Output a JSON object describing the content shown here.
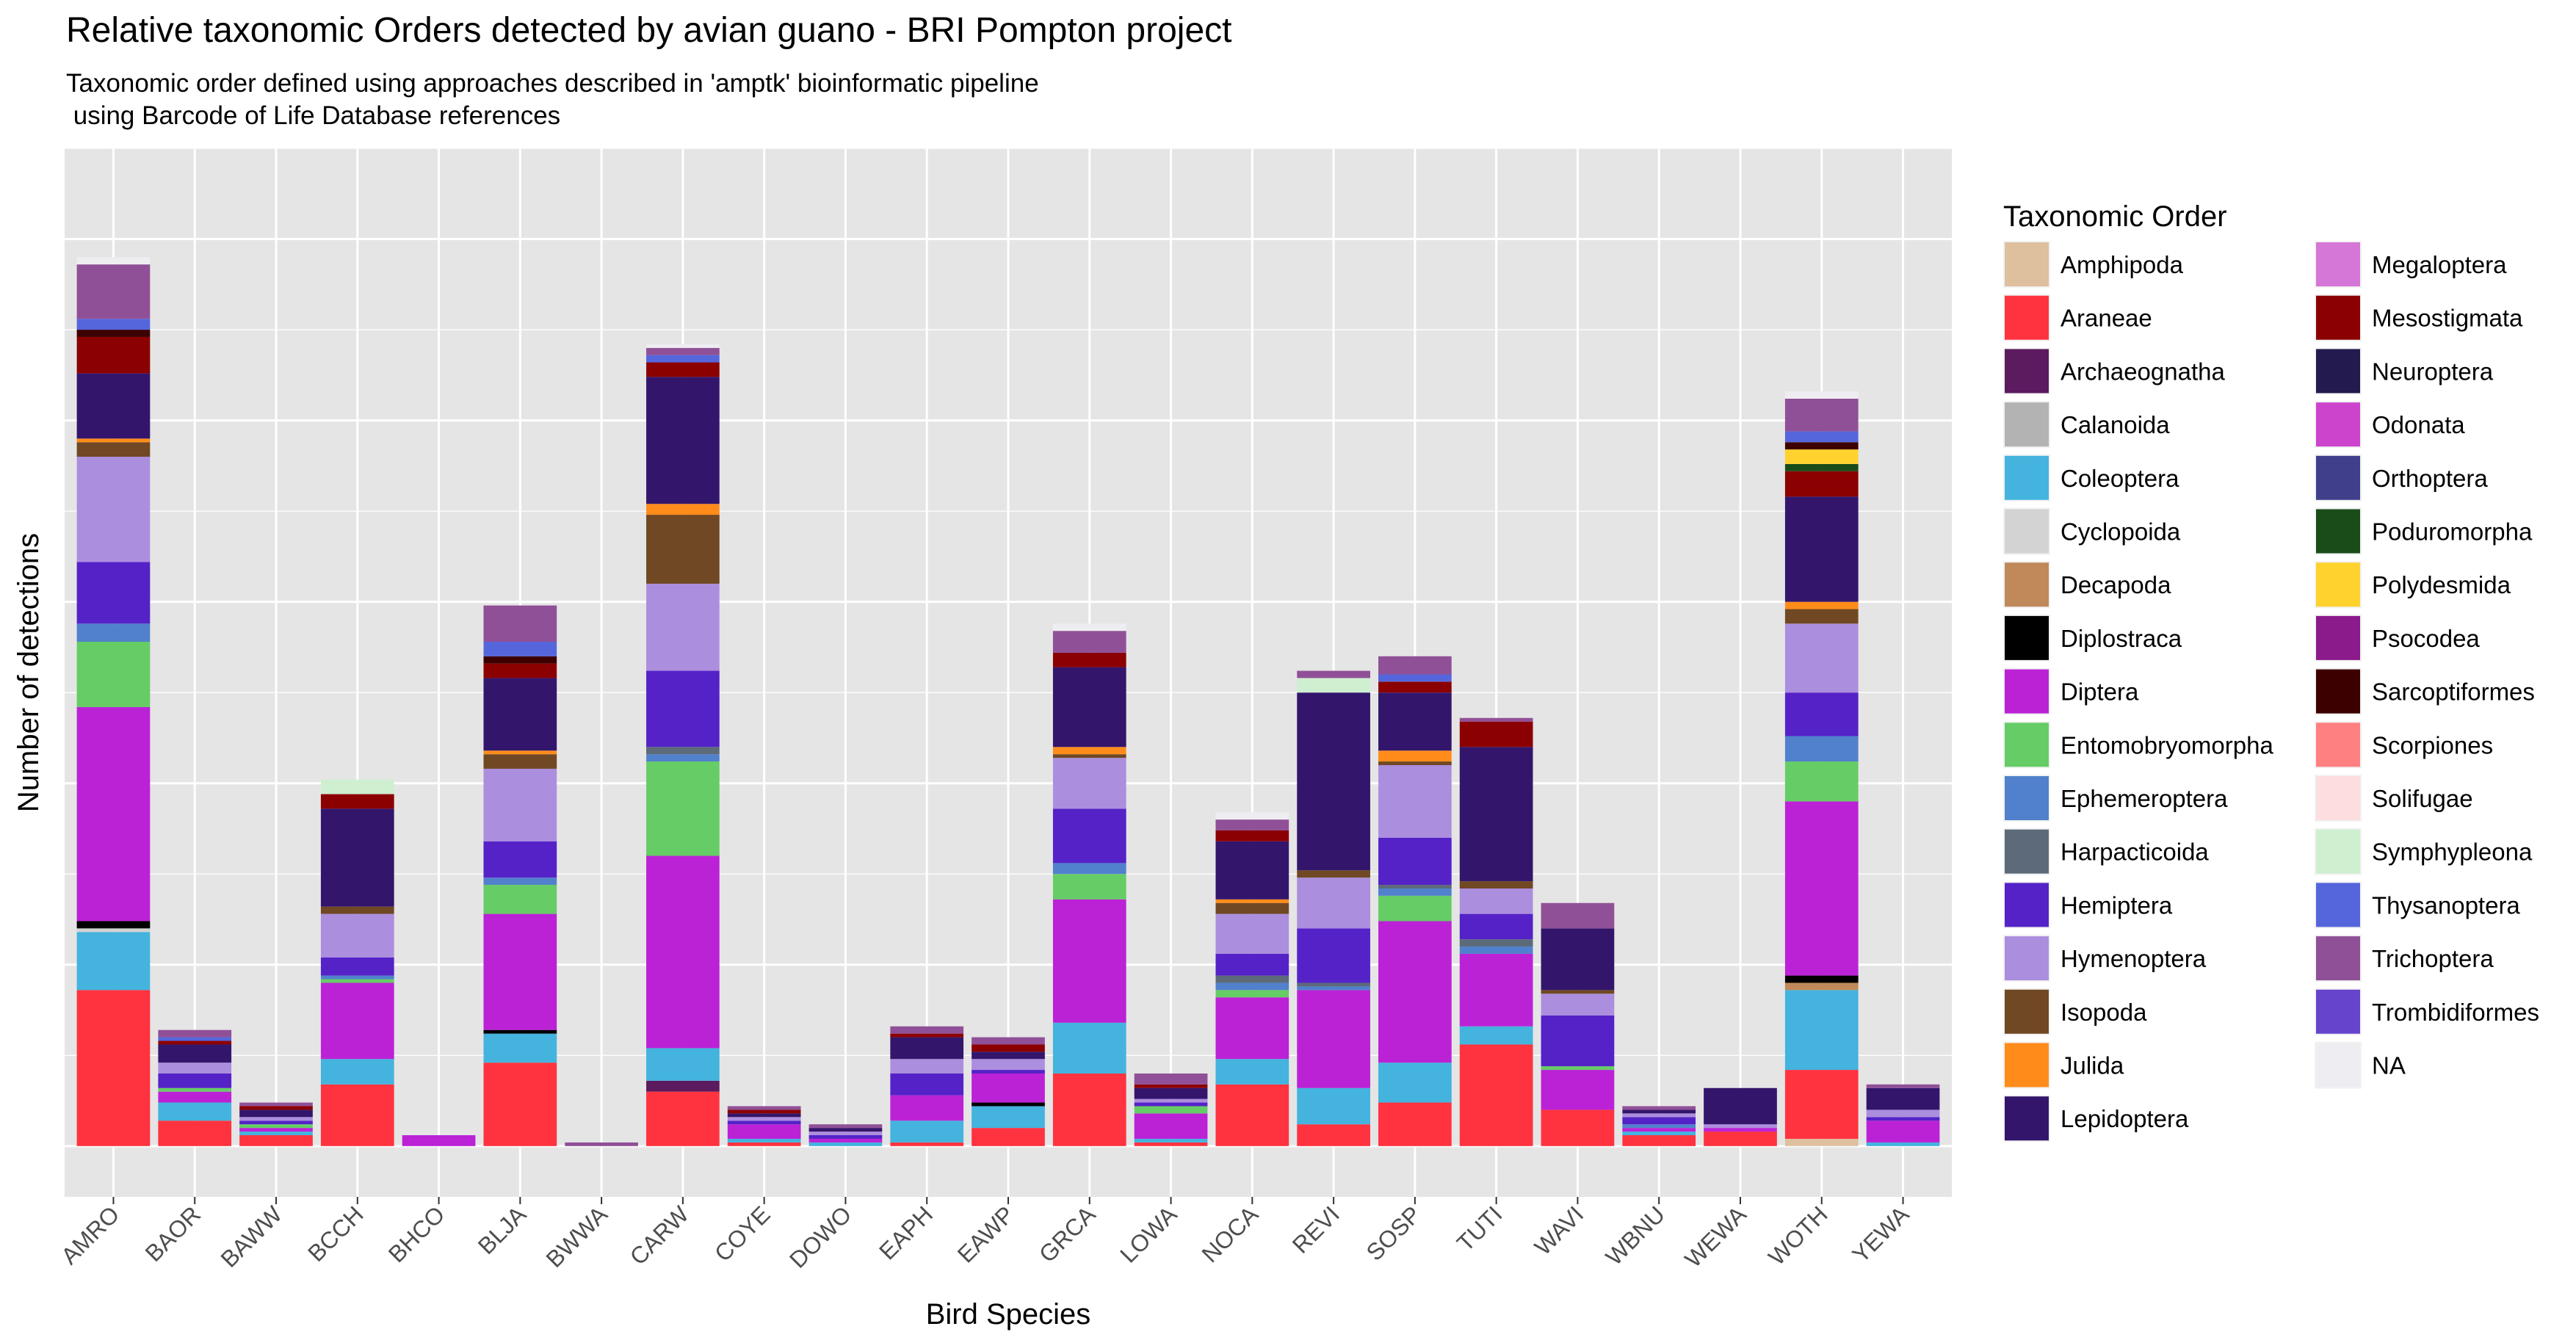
{
  "chart_data": {
    "type": "bar",
    "stacked": true,
    "title": "Relative taxonomic Orders detected by avian guano - BRI Pompton project",
    "subtitle": "Taxonomic order defined using approaches described in 'amptk' bioinformatic pipeline\n using Barcode of Life Database references",
    "xlabel": "Bird Species",
    "ylabel": "Number of detections",
    "legend_title": "Taxonomic Order",
    "legend_position": "right",
    "grid": true,
    "ylim": [
      -14,
      275
    ],
    "categories": [
      "AMRO",
      "BAOR",
      "BAWW",
      "BCCH",
      "BHCO",
      "BLJA",
      "BWWA",
      "CARW",
      "COYE",
      "DOWO",
      "EAPH",
      "EAWP",
      "GRCA",
      "LOWA",
      "NOCA",
      "REVI",
      "SOSP",
      "TUTI",
      "WAVI",
      "WBNU",
      "WEWA",
      "WOTH",
      "YEWA"
    ],
    "orders": [
      "Amphipoda",
      "Araneae",
      "Archaeognatha",
      "Calanoida",
      "Coleoptera",
      "Cyclopoida",
      "Decapoda",
      "Diplostraca",
      "Diptera",
      "Entomobryomorpha",
      "Ephemeroptera",
      "Harpacticoida",
      "Hemiptera",
      "Hymenoptera",
      "Isopoda",
      "Julida",
      "Lepidoptera",
      "Megaloptera",
      "Mesostigmata",
      "Neuroptera",
      "Odonata",
      "Orthoptera",
      "Poduromorpha",
      "Polydesmida",
      "Psocodea",
      "Sarcoptiformes",
      "Scorpiones",
      "Solifugae",
      "Symphypleona",
      "Thysanoptera",
      "Trichoptera",
      "Trombidiformes",
      "NA"
    ],
    "colors": {
      "Amphipoda": "#DEC09F",
      "Araneae": "#FF333F",
      "Archaeognatha": "#5C1A5F",
      "Calanoida": "#B3B3B3",
      "Coleoptera": "#44B3DE",
      "Cyclopoida": "#D3D3D3",
      "Decapoda": "#C0895A",
      "Diplostraca": "#000000",
      "Diptera": "#BB22D6",
      "Entomobryomorpha": "#66CC66",
      "Ephemeroptera": "#5181CC",
      "Harpacticoida": "#5C6A7A",
      "Hemiptera": "#5522C8",
      "Hymenoptera": "#AC8EDE",
      "Isopoda": "#704823",
      "Julida": "#FF8C1A",
      "Lepidoptera": "#33166C",
      "Megaloptera": "#D577D7",
      "Mesostigmata": "#8B0000",
      "Neuroptera": "#231A4F",
      "Odonata": "#CC44CC",
      "Orthoptera": "#3F3F8C",
      "Poduromorpha": "#1A4C1A",
      "Polydesmida": "#FFD22E",
      "Psocodea": "#8B1A8B",
      "Sarcoptiformes": "#3D0000",
      "Scorpiones": "#FF8080",
      "Solifugae": "#FDDDE0",
      "Symphypleona": "#CFEFD1",
      "Thysanoptera": "#5566DD",
      "Trichoptera": "#905097",
      "Trombidiformes": "#6644CC",
      "NA": "#EEEEF2"
    },
    "series": [
      {
        "name": "Amphipoda",
        "values": [
          0,
          0,
          0,
          0,
          0,
          0,
          0,
          0,
          0,
          0,
          0,
          0,
          0,
          0,
          0,
          0,
          0,
          0,
          0,
          0,
          0,
          2,
          0
        ]
      },
      {
        "name": "Araneae",
        "values": [
          43,
          7,
          3,
          17,
          0,
          23,
          0,
          15,
          1,
          0,
          1,
          5,
          20,
          1,
          17,
          6,
          12,
          28,
          10,
          3,
          4,
          19,
          0
        ]
      },
      {
        "name": "Archaeognatha",
        "values": [
          0,
          0,
          0,
          0,
          0,
          0,
          0,
          3,
          0,
          0,
          0,
          0,
          0,
          0,
          0,
          0,
          0,
          0,
          0,
          0,
          0,
          0,
          0
        ]
      },
      {
        "name": "Calanoida",
        "values": [
          0,
          0,
          0,
          0,
          0,
          0,
          0,
          0,
          0,
          0,
          0,
          0,
          0,
          0,
          0,
          0,
          0,
          0,
          0,
          0,
          0,
          0,
          0
        ]
      },
      {
        "name": "Coleoptera",
        "values": [
          16,
          5,
          1,
          7,
          0,
          8,
          0,
          9,
          1,
          1,
          6,
          6,
          14,
          1,
          7,
          10,
          11,
          5,
          0,
          1,
          0,
          22,
          1
        ]
      },
      {
        "name": "Cyclopoida",
        "values": [
          1,
          0,
          0,
          0,
          0,
          0,
          0,
          0,
          0,
          0,
          0,
          0,
          0,
          0,
          0,
          0,
          0,
          0,
          0,
          0,
          0,
          0,
          0
        ]
      },
      {
        "name": "Decapoda",
        "values": [
          0,
          0,
          0,
          0,
          0,
          0,
          0,
          0,
          0,
          0,
          0,
          0,
          0,
          0,
          0,
          0,
          0,
          0,
          0,
          0,
          0,
          2,
          0
        ]
      },
      {
        "name": "Diplostraca",
        "values": [
          2,
          0,
          0,
          0,
          0,
          1,
          0,
          0,
          0,
          0,
          0,
          1,
          0,
          0,
          0,
          0,
          0,
          0,
          0,
          0,
          0,
          2,
          0
        ]
      },
      {
        "name": "Diptera",
        "values": [
          59,
          3,
          1,
          21,
          3,
          32,
          0,
          53,
          4,
          1,
          7,
          8,
          34,
          7,
          17,
          27,
          39,
          20,
          11,
          1,
          1,
          48,
          6
        ]
      },
      {
        "name": "Entomobryomorpha",
        "values": [
          18,
          1,
          1,
          1,
          0,
          8,
          0,
          26,
          0,
          0,
          0,
          0,
          7,
          2,
          2,
          0,
          7,
          0,
          1,
          0,
          0,
          11,
          0
        ]
      },
      {
        "name": "Ephemeroptera",
        "values": [
          5,
          0,
          0,
          1,
          0,
          2,
          0,
          2,
          0,
          0,
          0,
          0,
          3,
          0,
          2,
          1,
          2,
          2,
          0,
          1,
          0,
          7,
          0
        ]
      },
      {
        "name": "Harpacticoida",
        "values": [
          0,
          0,
          0,
          0,
          0,
          0,
          0,
          2,
          0,
          0,
          0,
          0,
          0,
          0,
          2,
          1,
          1,
          2,
          0,
          0,
          0,
          0,
          0
        ]
      },
      {
        "name": "Hemiptera",
        "values": [
          17,
          4,
          1,
          5,
          0,
          10,
          0,
          21,
          1,
          1,
          6,
          1,
          15,
          1,
          6,
          15,
          13,
          7,
          14,
          2,
          0,
          12,
          1
        ]
      },
      {
        "name": "Hymenoptera",
        "values": [
          29,
          3,
          1,
          12,
          0,
          20,
          0,
          24,
          1,
          1,
          4,
          3,
          14,
          1,
          11,
          14,
          20,
          7,
          6,
          1,
          1,
          19,
          2
        ]
      },
      {
        "name": "Isopoda",
        "values": [
          4,
          0,
          0,
          2,
          0,
          4,
          0,
          19,
          0,
          0,
          0,
          0,
          1,
          0,
          3,
          2,
          1,
          2,
          1,
          0,
          0,
          4,
          0
        ]
      },
      {
        "name": "Julida",
        "values": [
          1,
          0,
          0,
          0,
          0,
          1,
          0,
          3,
          0,
          0,
          0,
          0,
          2,
          0,
          1,
          0,
          3,
          0,
          0,
          0,
          0,
          2,
          0
        ]
      },
      {
        "name": "Lepidoptera",
        "values": [
          18,
          5,
          2,
          27,
          0,
          20,
          0,
          35,
          1,
          1,
          6,
          2,
          22,
          3,
          16,
          49,
          16,
          37,
          17,
          1,
          10,
          29,
          6
        ]
      },
      {
        "name": "Megaloptera",
        "values": [
          0,
          0,
          0,
          0,
          0,
          0,
          0,
          0,
          0,
          0,
          0,
          0,
          0,
          0,
          0,
          0,
          0,
          0,
          0,
          0,
          0,
          0,
          0
        ]
      },
      {
        "name": "Mesostigmata",
        "values": [
          10,
          1,
          1,
          4,
          0,
          4,
          0,
          4,
          1,
          0,
          1,
          2,
          4,
          1,
          3,
          0,
          3,
          7,
          0,
          0,
          0,
          7,
          0
        ]
      },
      {
        "name": "Neuroptera",
        "values": [
          0,
          0,
          0,
          0,
          0,
          0,
          0,
          0,
          0,
          0,
          0,
          0,
          0,
          0,
          0,
          0,
          0,
          0,
          0,
          0,
          0,
          0,
          0
        ]
      },
      {
        "name": "Odonata",
        "values": [
          0,
          0,
          0,
          0,
          0,
          0,
          0,
          0,
          0,
          0,
          0,
          0,
          0,
          0,
          0,
          0,
          0,
          0,
          0,
          0,
          0,
          0,
          0
        ]
      },
      {
        "name": "Orthoptera",
        "values": [
          0,
          0,
          0,
          0,
          0,
          0,
          0,
          0,
          0,
          0,
          0,
          0,
          0,
          0,
          0,
          0,
          0,
          0,
          0,
          0,
          0,
          0,
          0
        ]
      },
      {
        "name": "Poduromorpha",
        "values": [
          0,
          0,
          0,
          0,
          0,
          0,
          0,
          0,
          0,
          0,
          0,
          0,
          0,
          0,
          0,
          0,
          0,
          0,
          0,
          0,
          0,
          2,
          0
        ]
      },
      {
        "name": "Polydesmida",
        "values": [
          0,
          0,
          0,
          0,
          0,
          0,
          0,
          0,
          0,
          0,
          0,
          0,
          0,
          0,
          0,
          0,
          0,
          0,
          0,
          0,
          0,
          4,
          0
        ]
      },
      {
        "name": "Psocodea",
        "values": [
          0,
          0,
          0,
          0,
          0,
          0,
          0,
          0,
          0,
          0,
          0,
          0,
          0,
          0,
          0,
          0,
          0,
          0,
          0,
          0,
          0,
          0,
          0
        ]
      },
      {
        "name": "Sarcoptiformes",
        "values": [
          2,
          0,
          0,
          0,
          0,
          2,
          0,
          0,
          0,
          0,
          0,
          0,
          0,
          0,
          0,
          0,
          0,
          0,
          0,
          0,
          0,
          2,
          0
        ]
      },
      {
        "name": "Scorpiones",
        "values": [
          0,
          0,
          0,
          0,
          0,
          0,
          0,
          0,
          0,
          0,
          0,
          0,
          0,
          0,
          0,
          0,
          0,
          0,
          0,
          0,
          0,
          0,
          0
        ]
      },
      {
        "name": "Solifugae",
        "values": [
          0,
          0,
          0,
          0,
          0,
          0,
          0,
          0,
          0,
          0,
          0,
          0,
          0,
          0,
          0,
          0,
          0,
          0,
          0,
          0,
          0,
          0,
          0
        ]
      },
      {
        "name": "Symphypleona",
        "values": [
          0,
          0,
          0,
          4,
          0,
          0,
          0,
          0,
          0,
          0,
          0,
          0,
          0,
          0,
          0,
          4,
          0,
          0,
          0,
          0,
          0,
          0,
          0
        ]
      },
      {
        "name": "Thysanoptera",
        "values": [
          3,
          1,
          0,
          0,
          0,
          4,
          0,
          2,
          0,
          0,
          0,
          0,
          0,
          0,
          0,
          0,
          2,
          0,
          0,
          0,
          0,
          3,
          0
        ]
      },
      {
        "name": "Trombidiformes",
        "values": [
          0,
          0,
          0,
          0,
          0,
          0,
          0,
          0,
          0,
          0,
          0,
          0,
          0,
          0,
          0,
          0,
          0,
          0,
          0,
          0,
          0,
          0,
          0
        ]
      },
      {
        "name": "Trichoptera",
        "values": [
          15,
          2,
          1,
          0,
          0,
          10,
          1,
          2,
          1,
          1,
          2,
          2,
          6,
          3,
          3,
          2,
          5,
          1,
          7,
          1,
          0,
          9,
          1
        ]
      },
      {
        "name": "NA",
        "values": [
          2,
          0,
          0,
          0,
          0,
          0,
          0,
          1,
          0,
          0,
          0,
          0,
          2,
          0,
          2,
          0,
          0,
          0,
          0,
          0,
          0,
          2,
          0
        ]
      }
    ]
  }
}
